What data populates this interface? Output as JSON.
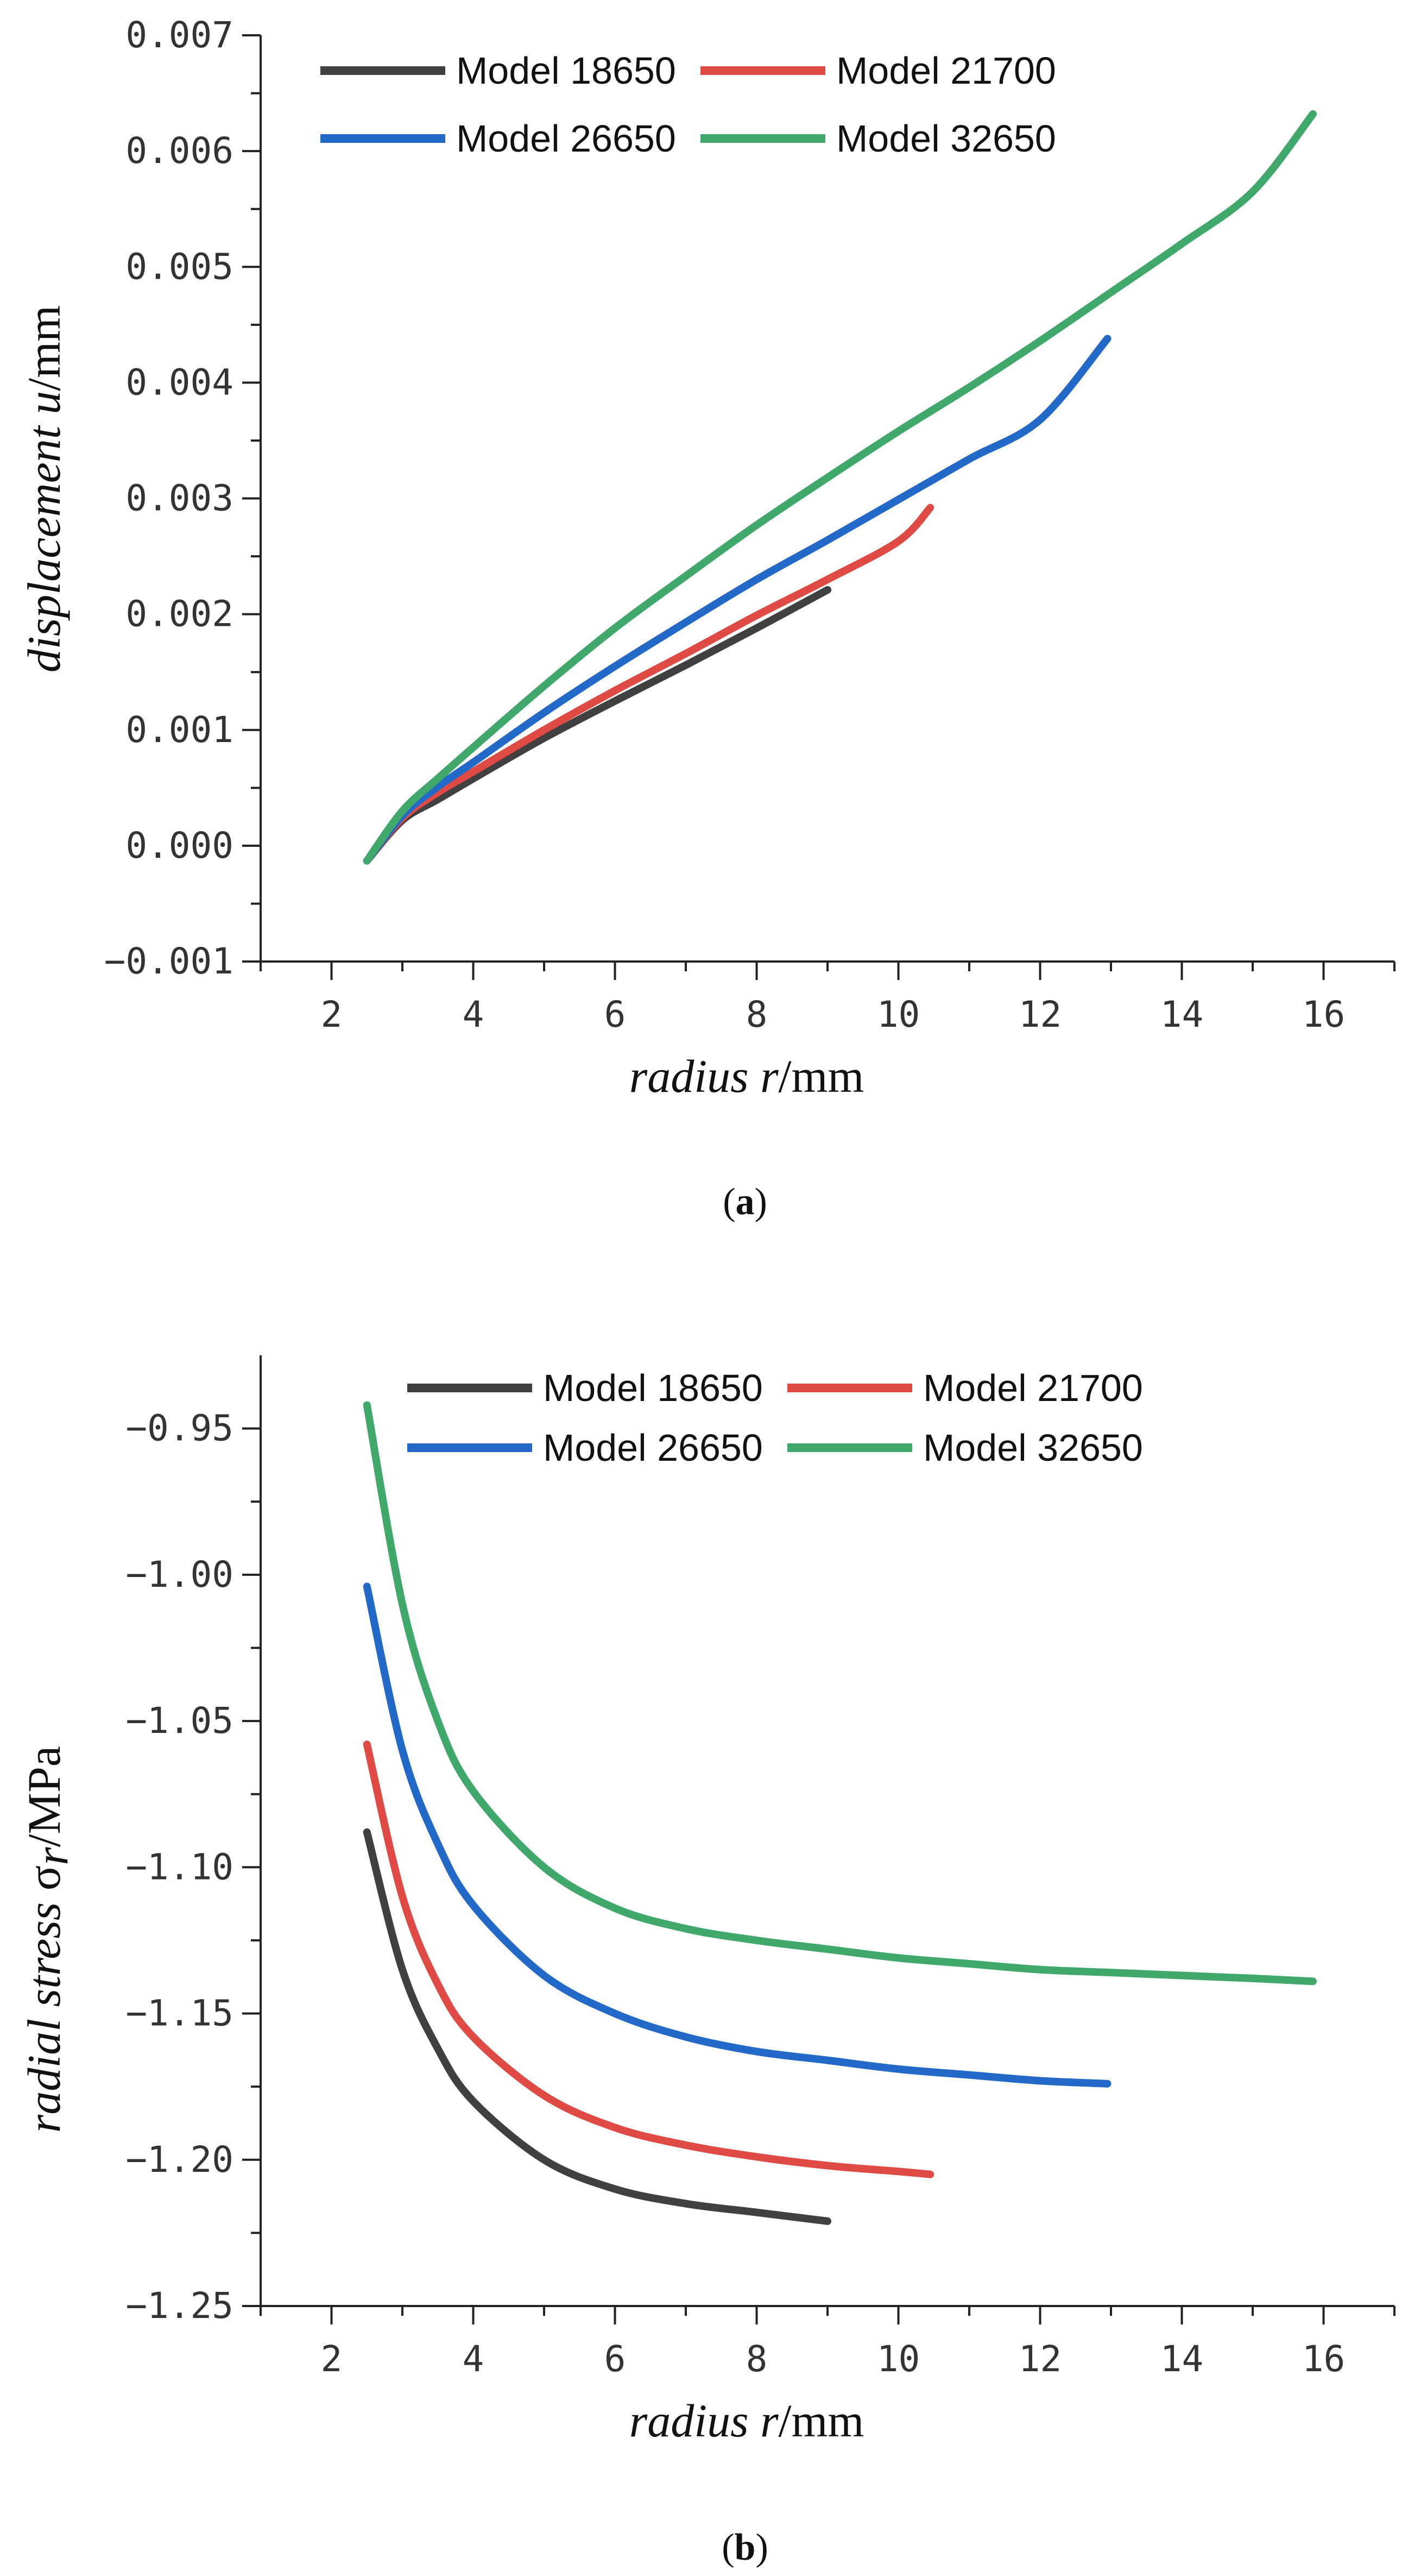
{
  "chart_data": [
    {
      "type": "line",
      "caption_open": "(",
      "caption_letter": "a",
      "caption_close": ")",
      "xlabel_italic": "radius r",
      "xlabel_unit": "/mm",
      "ylabel_italic": "displacement u",
      "ylabel_unit": "/mm",
      "xlim": [
        1,
        17
      ],
      "ylim": [
        -0.001,
        0.007
      ],
      "xticks": [
        "2",
        "4",
        "6",
        "8",
        "10",
        "12",
        "14",
        "16"
      ],
      "yticks": [
        "-0.001",
        "0.000",
        "0.001",
        "0.002",
        "0.003",
        "0.004",
        "0.005",
        "0.006",
        "0.007"
      ],
      "legend": {
        "placement": "top-center",
        "columns": 2
      },
      "series": [
        {
          "name": "Model 18650",
          "color": "#404040",
          "x": [
            2.5,
            3,
            3.5,
            4,
            5,
            6,
            7,
            8,
            9
          ],
          "y": [
            -0.00013,
            0.00022,
            0.0004,
            0.00058,
            0.00093,
            0.00125,
            0.00156,
            0.00188,
            0.00221
          ]
        },
        {
          "name": "Model 21700",
          "color": "#e04a45",
          "x": [
            2.5,
            3,
            3.5,
            4,
            5,
            6,
            7,
            8,
            9,
            10,
            10.45
          ],
          "y": [
            -0.00013,
            0.00024,
            0.00046,
            0.00064,
            0.001,
            0.00134,
            0.00166,
            0.00199,
            0.0023,
            0.00263,
            0.00292
          ]
        },
        {
          "name": "Model 26650",
          "color": "#2369c8",
          "x": [
            2.5,
            3,
            3.5,
            4,
            5,
            6,
            7,
            8,
            9,
            10,
            11,
            12,
            12.95
          ],
          "y": [
            -0.00013,
            0.00026,
            0.00051,
            0.00072,
            0.00115,
            0.00155,
            0.00193,
            0.0023,
            0.00264,
            0.00299,
            0.00334,
            0.00368,
            0.00438
          ]
        },
        {
          "name": "Model 32650",
          "color": "#3fa86a",
          "x": [
            2.5,
            3,
            3.5,
            4,
            5,
            6,
            7,
            8,
            9,
            10,
            11,
            12,
            13,
            14,
            15,
            15.85
          ],
          "y": [
            -0.00013,
            0.0003,
            0.00058,
            0.00085,
            0.00138,
            0.00188,
            0.00233,
            0.00277,
            0.00318,
            0.00358,
            0.00396,
            0.00436,
            0.00478,
            0.0052,
            0.00565,
            0.00632
          ]
        }
      ]
    },
    {
      "type": "line",
      "caption_open": "(",
      "caption_letter": "b",
      "caption_close": ")",
      "xlabel_italic": "radius  r",
      "xlabel_unit": "/mm",
      "ylabel_italic": "radial stress ",
      "ylabel_sigma": "σ",
      "ylabel_sub": "r",
      "ylabel_unit": "/MPa",
      "xlim": [
        1,
        17
      ],
      "ylim": [
        -1.25,
        -0.925
      ],
      "xticks": [
        "2",
        "4",
        "6",
        "8",
        "10",
        "12",
        "14",
        "16"
      ],
      "yticks": [
        "-1.25",
        "-1.20",
        "-1.15",
        "-1.10",
        "-1.05",
        "-1.00",
        "-0.95"
      ],
      "legend": {
        "placement": "top-center",
        "columns": 2
      },
      "series": [
        {
          "name": "Model 18650",
          "color": "#404040",
          "x": [
            2.5,
            3,
            3.5,
            4,
            5,
            6,
            7,
            8,
            9
          ],
          "y": [
            -1.088,
            -1.135,
            -1.162,
            -1.18,
            -1.2,
            -1.21,
            -1.215,
            -1.218,
            -1.221
          ]
        },
        {
          "name": "Model 21700",
          "color": "#e04a45",
          "x": [
            2.5,
            3,
            3.5,
            4,
            5,
            6,
            7,
            8,
            9,
            10,
            10.45
          ],
          "y": [
            -1.058,
            -1.11,
            -1.14,
            -1.158,
            -1.178,
            -1.189,
            -1.195,
            -1.199,
            -1.202,
            -1.204,
            -1.205
          ]
        },
        {
          "name": "Model 26650",
          "color": "#2369c8",
          "x": [
            2.5,
            3,
            3.5,
            4,
            5,
            6,
            7,
            8,
            9,
            10,
            11,
            12,
            12.95
          ],
          "y": [
            -1.004,
            -1.06,
            -1.092,
            -1.113,
            -1.137,
            -1.15,
            -1.158,
            -1.163,
            -1.166,
            -1.169,
            -1.171,
            -1.173,
            -1.174
          ]
        },
        {
          "name": "Model 32650",
          "color": "#3fa86a",
          "x": [
            2.5,
            3,
            3.5,
            4,
            5,
            6,
            7,
            8,
            9,
            10,
            11,
            12,
            13,
            14,
            15,
            15.85
          ],
          "y": [
            -0.942,
            -1.01,
            -1.05,
            -1.074,
            -1.1,
            -1.114,
            -1.121,
            -1.125,
            -1.128,
            -1.131,
            -1.133,
            -1.135,
            -1.136,
            -1.137,
            -1.138,
            -1.139
          ]
        }
      ]
    }
  ]
}
